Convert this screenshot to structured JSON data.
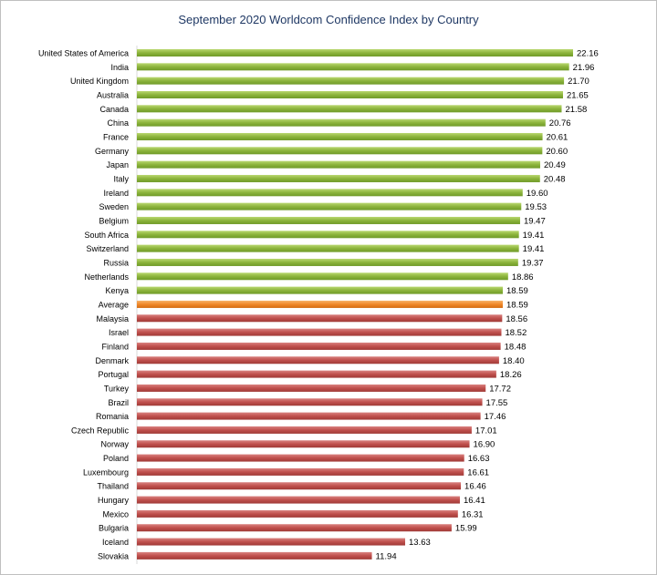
{
  "chart_data": {
    "type": "bar",
    "orientation": "horizontal",
    "title": "September 2020 Worldcom Confidence Index by Country",
    "categories": [
      "United States of America",
      "India",
      "United Kingdom",
      "Australia",
      "Canada",
      "China",
      "France",
      "Germany",
      "Japan",
      "Italy",
      "Ireland",
      "Sweden",
      "Belgium",
      "South Africa",
      "Switzerland",
      "Russia",
      "Netherlands",
      "Kenya",
      "Average",
      "Malaysia",
      "Israel",
      "Finland",
      "Denmark",
      "Portugal",
      "Turkey",
      "Brazil",
      "Romania",
      "Czech Republic",
      "Norway",
      "Poland",
      "Luxembourg",
      "Thailand",
      "Hungary",
      "Mexico",
      "Bulgaria",
      "Iceland",
      "Slovakia"
    ],
    "values": [
      22.16,
      21.96,
      21.7,
      21.65,
      21.58,
      20.76,
      20.61,
      20.6,
      20.49,
      20.48,
      19.6,
      19.53,
      19.47,
      19.41,
      19.41,
      19.37,
      18.86,
      18.59,
      18.59,
      18.56,
      18.52,
      18.48,
      18.4,
      18.26,
      17.72,
      17.55,
      17.46,
      17.01,
      16.9,
      16.63,
      16.61,
      16.46,
      16.41,
      16.31,
      15.99,
      13.63,
      11.94
    ],
    "value_labels": [
      "22.16",
      "21.96",
      "21.70",
      "21.65",
      "21.58",
      "20.76",
      "20.61",
      "20.60",
      "20.49",
      "20.48",
      "19.60",
      "19.53",
      "19.47",
      "19.41",
      "19.41",
      "19.37",
      "18.86",
      "18.59",
      "18.59",
      "18.56",
      "18.52",
      "18.48",
      "18.40",
      "18.26",
      "17.72",
      "17.55",
      "17.46",
      "17.01",
      "16.90",
      "16.63",
      "16.61",
      "16.46",
      "16.41",
      "16.31",
      "15.99",
      "13.63",
      "11.94"
    ],
    "bar_colors": {
      "above": "#8cb43c",
      "average": "#f0882a",
      "below": "#c0504d"
    },
    "xlim": [
      0,
      22.16
    ],
    "grid": false,
    "legend": "none"
  }
}
